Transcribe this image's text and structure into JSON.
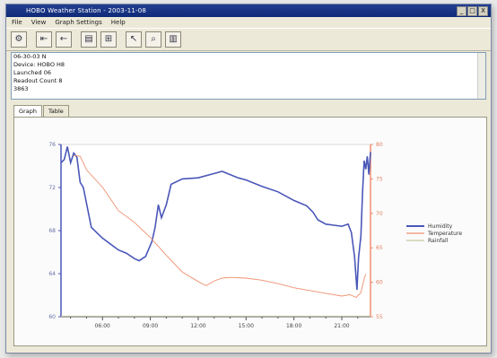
{
  "window": {
    "title": "HOBO Weather Station - 2003-11-08",
    "buttons": [
      "_",
      "□",
      "X"
    ]
  },
  "menu": {
    "items": [
      "File",
      "View",
      "Graph Settings",
      "Help"
    ]
  },
  "toolbar": {
    "tools": [
      {
        "icon": "settings-icon",
        "glyph": "⚙"
      },
      {
        "icon": "arrow-left-icon",
        "glyph": "⇤"
      },
      {
        "icon": "arrow-back-icon",
        "glyph": "←"
      },
      {
        "icon": "document-icon",
        "glyph": "▤"
      },
      {
        "icon": "frame-icon",
        "glyph": "⊞"
      },
      {
        "icon": "pointer-icon",
        "glyph": "↖"
      },
      {
        "icon": "zoom-icon",
        "glyph": "⌕"
      },
      {
        "icon": "panel-icon",
        "glyph": "▥"
      }
    ]
  },
  "info": {
    "lines": [
      "06-30-03 N",
      "Device: HOBO H8",
      "Launched 06",
      "Readout Count 8",
      "3863"
    ]
  },
  "tabs": {
    "items": [
      "Graph",
      "Table"
    ],
    "active": 0
  },
  "colors": {
    "humidity": "#4a57b8",
    "temperature": "#f09070",
    "rainfall": "#c8c8a8"
  },
  "chart_data": {
    "type": "line",
    "x_ticks": [
      "06:00",
      "09:00",
      "12:00",
      "15:00",
      "18:00",
      "21:00"
    ],
    "x_range": [
      3.4,
      22.8
    ],
    "y_left": {
      "ticks": [
        "60",
        "64",
        "68",
        "72",
        "76"
      ],
      "range": [
        60,
        76
      ]
    },
    "y_right": {
      "ticks": [
        "55",
        "60",
        "65",
        "70",
        "75",
        "80"
      ],
      "range": [
        55,
        80
      ]
    },
    "legend": [
      "Humidity",
      "Temperature",
      "Rainfall"
    ],
    "legend_position": "right",
    "series": [
      {
        "name": "Humidity",
        "axis": "left",
        "points": [
          [
            3.4,
            74.3
          ],
          [
            3.6,
            74.6
          ],
          [
            3.8,
            75.8
          ],
          [
            4.0,
            74.3
          ],
          [
            4.2,
            75.2
          ],
          [
            4.4,
            74.8
          ],
          [
            4.6,
            72.5
          ],
          [
            4.8,
            72
          ],
          [
            5.3,
            68.3
          ],
          [
            6,
            67.3
          ],
          [
            7,
            66.2
          ],
          [
            7.5,
            65.9
          ],
          [
            8,
            65.4
          ],
          [
            8.3,
            65.2
          ],
          [
            8.7,
            65.6
          ],
          [
            9.1,
            67
          ],
          [
            9.3,
            68.3
          ],
          [
            9.5,
            70.4
          ],
          [
            9.7,
            69.2
          ],
          [
            10,
            70.4
          ],
          [
            10.3,
            72.3
          ],
          [
            11,
            72.8
          ],
          [
            12,
            72.9
          ],
          [
            13,
            73.3
          ],
          [
            13.5,
            73.5
          ],
          [
            14,
            73.2
          ],
          [
            14.5,
            72.9
          ],
          [
            15,
            72.7
          ],
          [
            16,
            72.1
          ],
          [
            17,
            71.6
          ],
          [
            18,
            70.8
          ],
          [
            18.8,
            70.3
          ],
          [
            19.2,
            69.7
          ],
          [
            19.5,
            69
          ],
          [
            20,
            68.6
          ],
          [
            20.5,
            68.5
          ],
          [
            21,
            68.4
          ],
          [
            21.4,
            68.6
          ],
          [
            21.6,
            67.8
          ],
          [
            21.8,
            65.6
          ],
          [
            21.95,
            62.5
          ],
          [
            22.05,
            65.5
          ],
          [
            22.2,
            67.5
          ],
          [
            22.3,
            71.5
          ],
          [
            22.4,
            74.5
          ],
          [
            22.5,
            73.7
          ],
          [
            22.6,
            74.9
          ],
          [
            22.7,
            73.2
          ],
          [
            22.8,
            75.3
          ]
        ]
      },
      {
        "name": "Temperature",
        "axis": "right",
        "points": [
          [
            4.2,
            78.4
          ],
          [
            4.6,
            78.3
          ],
          [
            5,
            76.3
          ],
          [
            6,
            73.8
          ],
          [
            7,
            70.4
          ],
          [
            8,
            68.7
          ],
          [
            9,
            66.5
          ],
          [
            10,
            63.9
          ],
          [
            11,
            61.5
          ],
          [
            12,
            60.1
          ],
          [
            12.5,
            59.5
          ],
          [
            13,
            60.2
          ],
          [
            13.5,
            60.6
          ],
          [
            14,
            60.7
          ],
          [
            15,
            60.6
          ],
          [
            16,
            60.3
          ],
          [
            17,
            59.8
          ],
          [
            18,
            59.2
          ],
          [
            19,
            58.8
          ],
          [
            20,
            58.4
          ],
          [
            21,
            58
          ],
          [
            21.5,
            58.2
          ],
          [
            21.9,
            57.8
          ],
          [
            22.2,
            58.5
          ],
          [
            22.4,
            60.5
          ],
          [
            22.5,
            61.2
          ]
        ]
      },
      {
        "name": "Rainfall",
        "axis": "left",
        "points": [
          [
            3.4,
            60.05
          ],
          [
            22.8,
            60.05
          ]
        ]
      }
    ]
  }
}
